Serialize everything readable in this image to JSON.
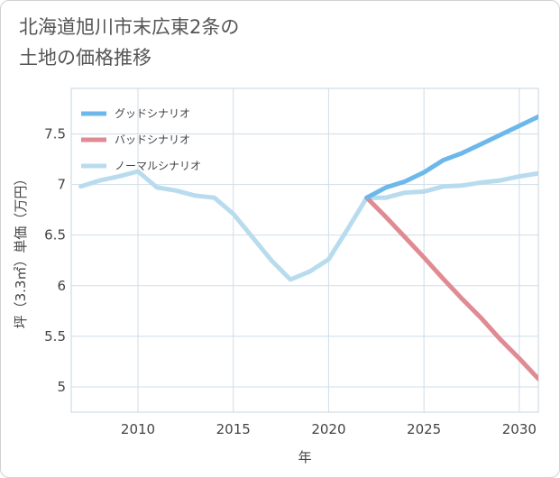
{
  "title_lines": [
    "北海道旭川市末広東2条の",
    "土地の価格推移"
  ],
  "chart_data": {
    "type": "line",
    "xlabel": "年",
    "ylabel": "坪（3.3㎡）単価（万円）",
    "xlim": [
      2006.5,
      2031
    ],
    "ylim": [
      4.75,
      7.95
    ],
    "xticks": [
      2010,
      2015,
      2020,
      2025,
      2030
    ],
    "yticks": [
      5,
      5.5,
      6,
      6.5,
      7,
      7.5
    ],
    "ytick_labels": [
      "5",
      "5.5",
      "6",
      "6.5",
      "7",
      "7.5"
    ],
    "grid": true,
    "legend_position": "top-left",
    "series": [
      {
        "name": "グッドシナリオ",
        "color": "#6cb8ea",
        "x": [
          2022,
          2023,
          2024,
          2025,
          2026,
          2027,
          2028,
          2029,
          2030,
          2031
        ],
        "y": [
          6.87,
          6.97,
          7.03,
          7.12,
          7.24,
          7.31,
          7.4,
          7.49,
          7.58,
          7.67
        ]
      },
      {
        "name": "バッドシナリオ",
        "color": "#e08b93",
        "x": [
          2022,
          2023,
          2024,
          2025,
          2026,
          2027,
          2028,
          2029,
          2030,
          2031
        ],
        "y": [
          6.87,
          6.68,
          6.48,
          6.28,
          6.07,
          5.87,
          5.68,
          5.47,
          5.28,
          5.08
        ]
      },
      {
        "name": "ノーマルシナリオ",
        "color": "#b8dcee",
        "x": [
          2007,
          2008,
          2009,
          2010,
          2011,
          2012,
          2013,
          2014,
          2015,
          2016,
          2017,
          2018,
          2019,
          2020,
          2021,
          2022,
          2023,
          2024,
          2025,
          2026,
          2027,
          2028,
          2029,
          2030,
          2031
        ],
        "y": [
          6.98,
          7.04,
          7.08,
          7.13,
          6.97,
          6.94,
          6.89,
          6.87,
          6.71,
          6.48,
          6.25,
          6.06,
          6.14,
          6.26,
          6.56,
          6.87,
          6.87,
          6.92,
          6.93,
          6.98,
          6.99,
          7.02,
          7.04,
          7.08,
          7.11
        ]
      }
    ]
  }
}
